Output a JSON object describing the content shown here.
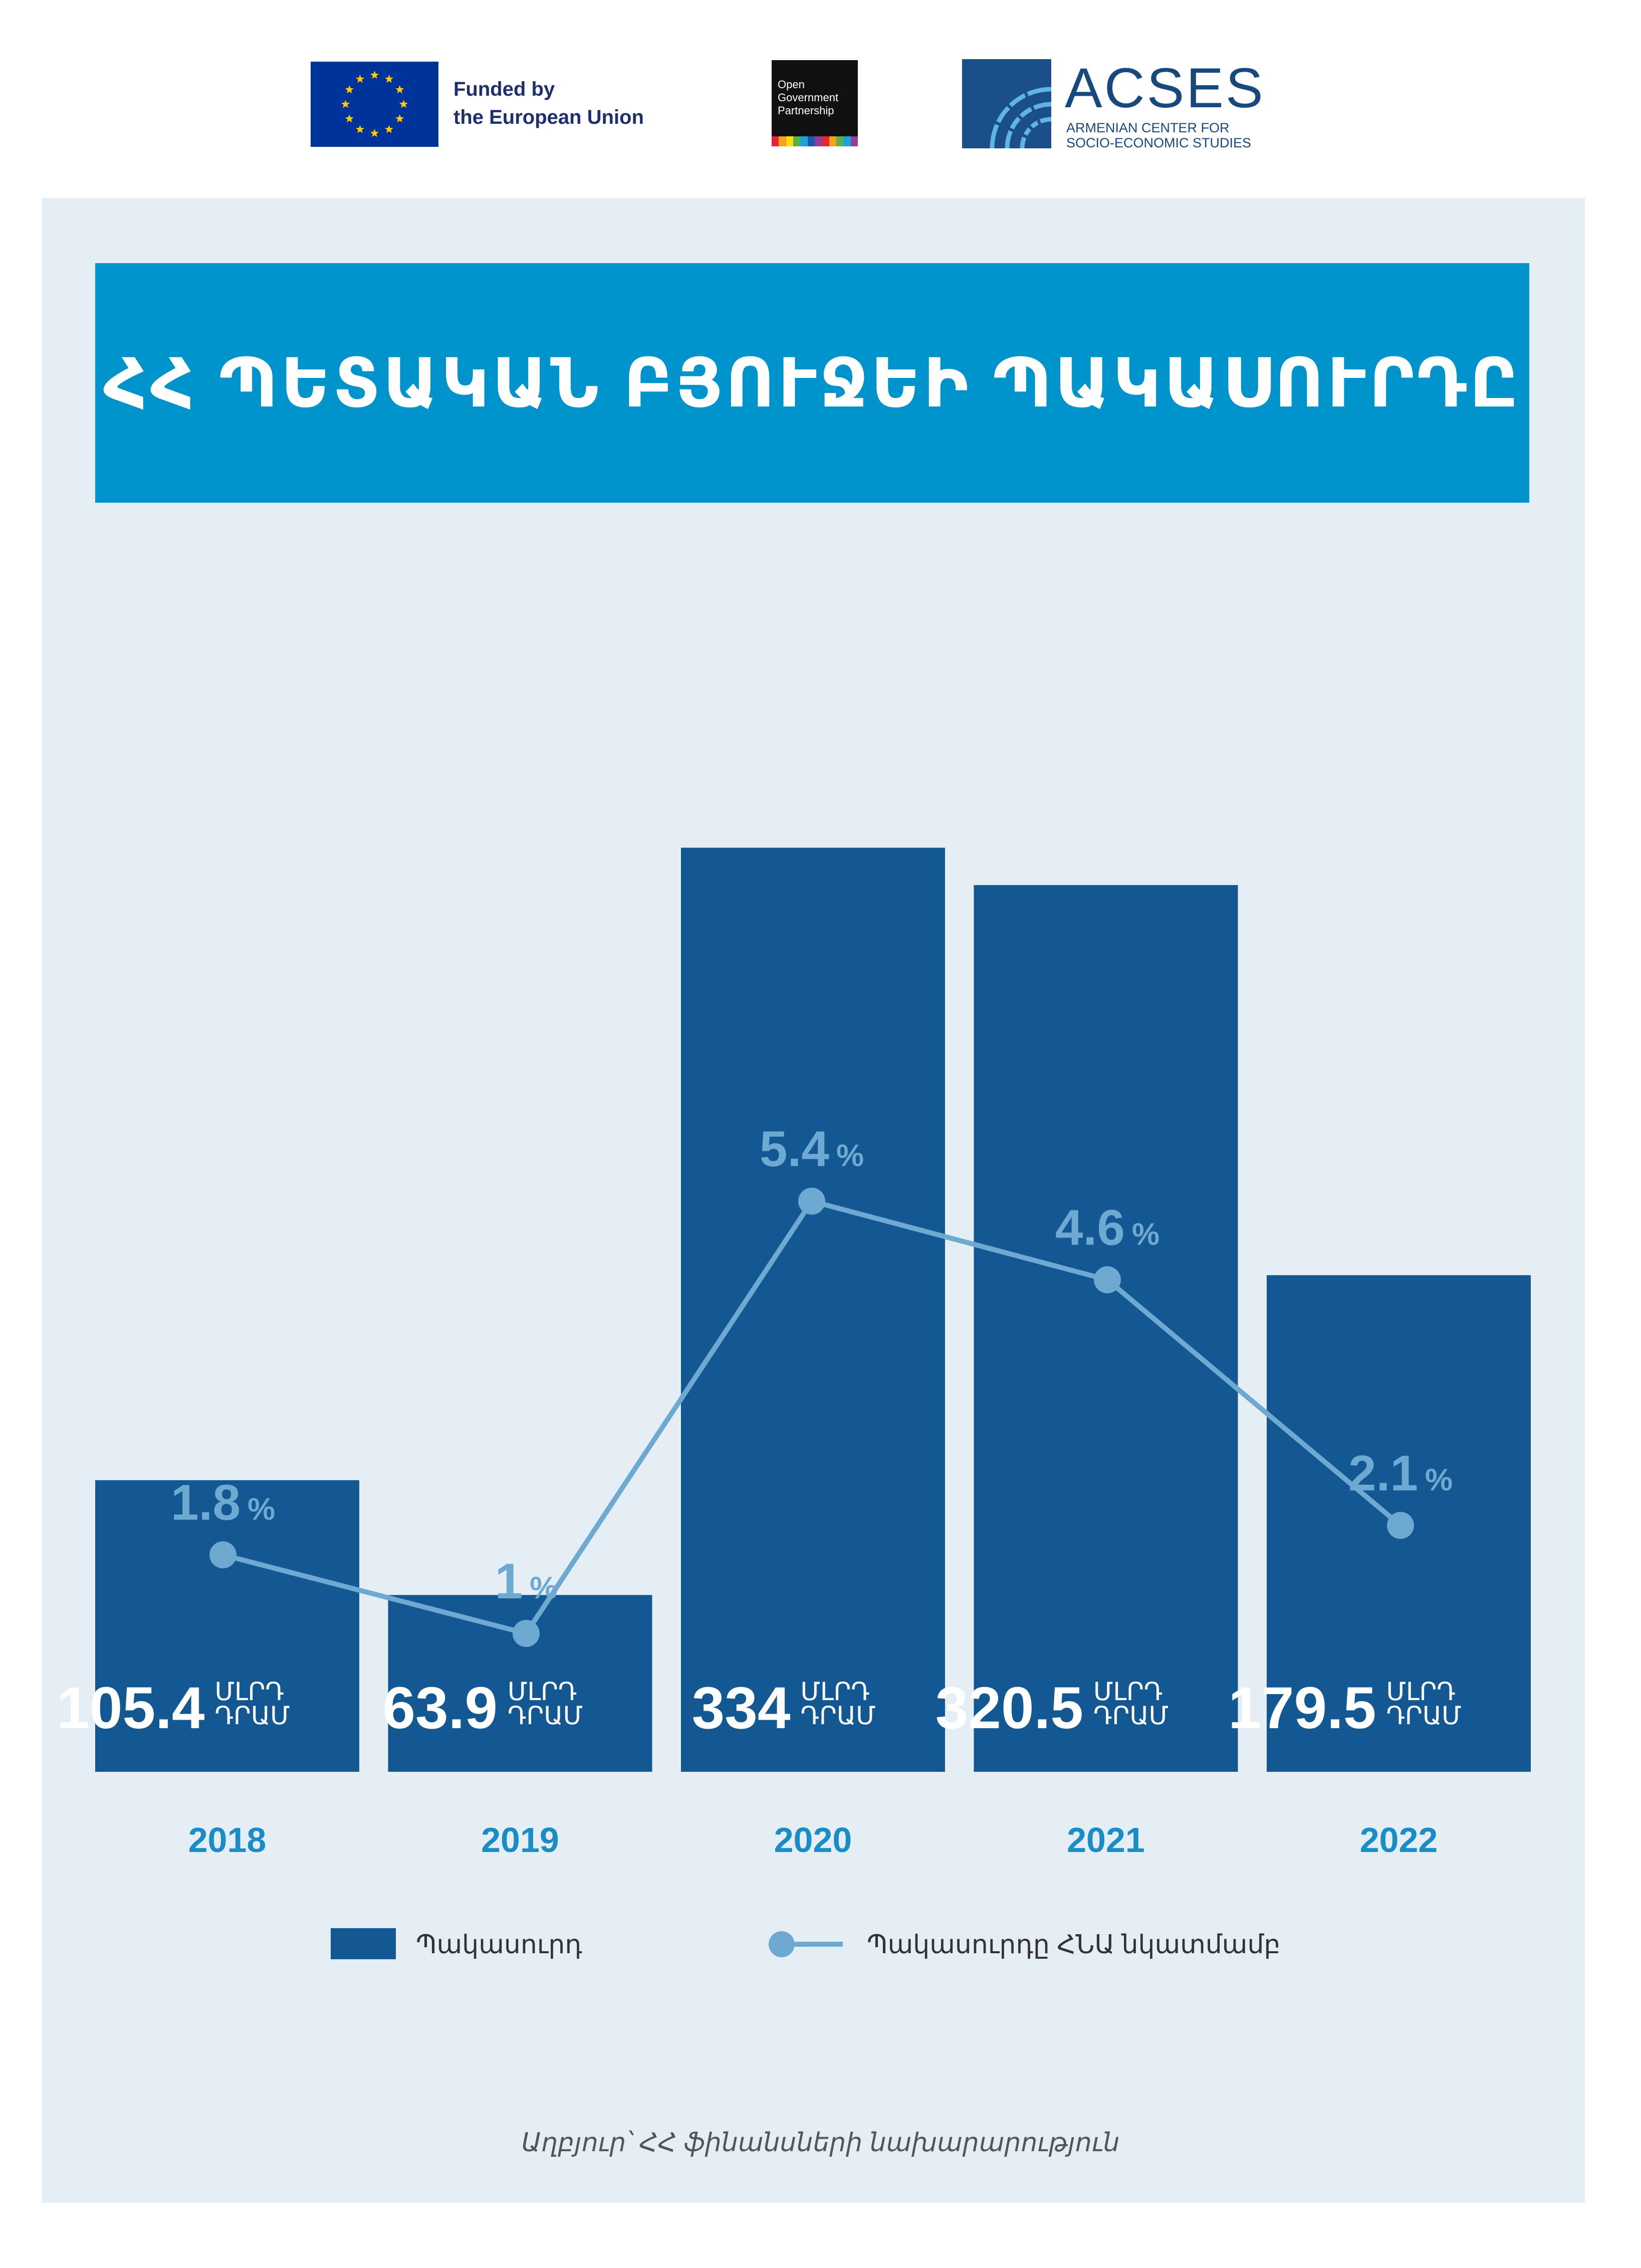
{
  "header": {
    "eu_line1": "Funded by",
    "eu_line2": "the European Union",
    "ogp_lines": [
      "Open",
      "Government",
      "Partnership"
    ],
    "acses_title": "ACSES",
    "acses_sub1": "ARMENIAN CENTER FOR",
    "acses_sub2": "SOCIO-ECONOMIC STUDIES"
  },
  "title": "ՀՀ ՊԵՏԱԿԱՆ ԲՅՈՒՋԵԻ ՊԱԿԱՍՈՒՐԴԸ",
  "colors": {
    "bar": "#135892",
    "line": "#6ea9d2",
    "year": "#1a8cc6",
    "banner": "#0093cc",
    "panel": "#e4eef4"
  },
  "chart_data": {
    "type": "bar",
    "title": "ՀՀ ՊԵՏԱԿԱՆ ԲՅՈՒՋԵԻ ՊԱԿԱՍՈՒՐԴԸ",
    "categories": [
      "2018",
      "2019",
      "2020",
      "2021",
      "2022"
    ],
    "unit_line1": "ՄԼՐԴ",
    "unit_line2": "ԴՐԱՄ",
    "percent_sign": "%",
    "series": [
      {
        "name": "Պակասուրդ",
        "type": "bar",
        "values": [
          105.4,
          63.9,
          334,
          320.5,
          179.5
        ],
        "labels": [
          "105.4",
          "63.9",
          "334",
          "320.5",
          "179.5"
        ]
      },
      {
        "name": "Պակասուրդը ՀՆԱ նկատմամբ",
        "type": "line",
        "values": [
          1.8,
          1,
          5.4,
          4.6,
          2.1
        ],
        "labels": [
          "1.8",
          "1",
          "5.4",
          "4.6",
          "2.1"
        ]
      }
    ],
    "legend_position": "bottom",
    "grid": false
  },
  "source": "Աղբյուր՝ ՀՀ ֆինանսների նախարարություն"
}
